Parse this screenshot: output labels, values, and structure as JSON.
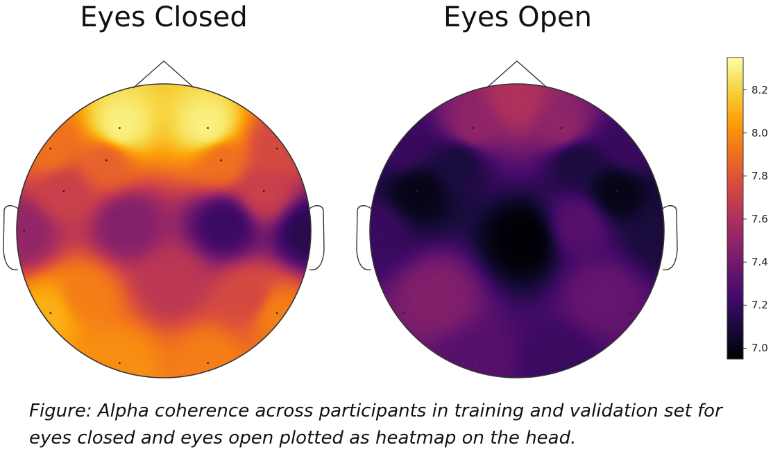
{
  "chart_data": {
    "type": "heatmap",
    "subtype": "topographic-head-map",
    "colormap": "inferno",
    "quantity": "Alpha coherence",
    "clim": [
      6.95,
      8.35
    ],
    "colorbar": {
      "ticks": [
        7.0,
        7.2,
        7.4,
        7.6,
        7.8,
        8.0,
        8.2
      ],
      "tick_labels": [
        "7.0",
        "7.2",
        "7.4",
        "7.6",
        "7.8",
        "8.0",
        "8.2"
      ]
    },
    "panels": [
      {
        "title": "Eyes Closed",
        "electrodes": [
          {
            "region": "frontal-pole-left",
            "value": 8.3
          },
          {
            "region": "frontal-pole-right",
            "value": 8.3
          },
          {
            "region": "frontal-far-left",
            "value": 7.9
          },
          {
            "region": "frontal-left",
            "value": 7.85
          },
          {
            "region": "frontal-right",
            "value": 7.9
          },
          {
            "region": "frontal-far-right",
            "value": 7.75
          },
          {
            "region": "fronto-central-left",
            "value": 7.7
          },
          {
            "region": "fronto-central-right",
            "value": 7.7
          },
          {
            "region": "temporal-left",
            "value": 7.5
          },
          {
            "region": "temporal-right",
            "value": 7.15
          },
          {
            "region": "central-left",
            "value": 7.45
          },
          {
            "region": "central-right",
            "value": 7.2
          },
          {
            "region": "centro-parietal-mid",
            "value": 7.65
          },
          {
            "region": "parietal-left",
            "value": 7.95
          },
          {
            "region": "parietal-right",
            "value": 7.75
          },
          {
            "region": "posterior-temporal-left",
            "value": 8.1
          },
          {
            "region": "posterior-temporal-right",
            "value": 7.95
          },
          {
            "region": "occipital-left",
            "value": 8.0
          },
          {
            "region": "occipital-right",
            "value": 7.95
          }
        ]
      },
      {
        "title": "Eyes Open",
        "electrodes": [
          {
            "region": "frontal-pole-left",
            "value": 7.5
          },
          {
            "region": "frontal-pole-right",
            "value": 7.5
          },
          {
            "region": "frontal-top-mid",
            "value": 7.6
          },
          {
            "region": "frontal-far-left",
            "value": 7.2
          },
          {
            "region": "frontal-left",
            "value": 7.1
          },
          {
            "region": "frontal-right",
            "value": 7.1
          },
          {
            "region": "frontal-far-right",
            "value": 7.2
          },
          {
            "region": "fronto-central-left",
            "value": 7.0
          },
          {
            "region": "fronto-central-right",
            "value": 7.0
          },
          {
            "region": "temporal-left",
            "value": 7.2
          },
          {
            "region": "temporal-right",
            "value": 7.1
          },
          {
            "region": "central-mid",
            "value": 6.95
          },
          {
            "region": "central-right",
            "value": 7.3
          },
          {
            "region": "parietal-left",
            "value": 7.45
          },
          {
            "region": "parietal-right",
            "value": 7.35
          },
          {
            "region": "occipital-left",
            "value": 7.3
          },
          {
            "region": "occipital-right",
            "value": 7.2
          }
        ]
      }
    ]
  },
  "caption": {
    "line1": "Figure: Alpha coherence across participants in training and validation set for",
    "line2": "eyes closed and eyes open plotted as heatmap on the head."
  }
}
